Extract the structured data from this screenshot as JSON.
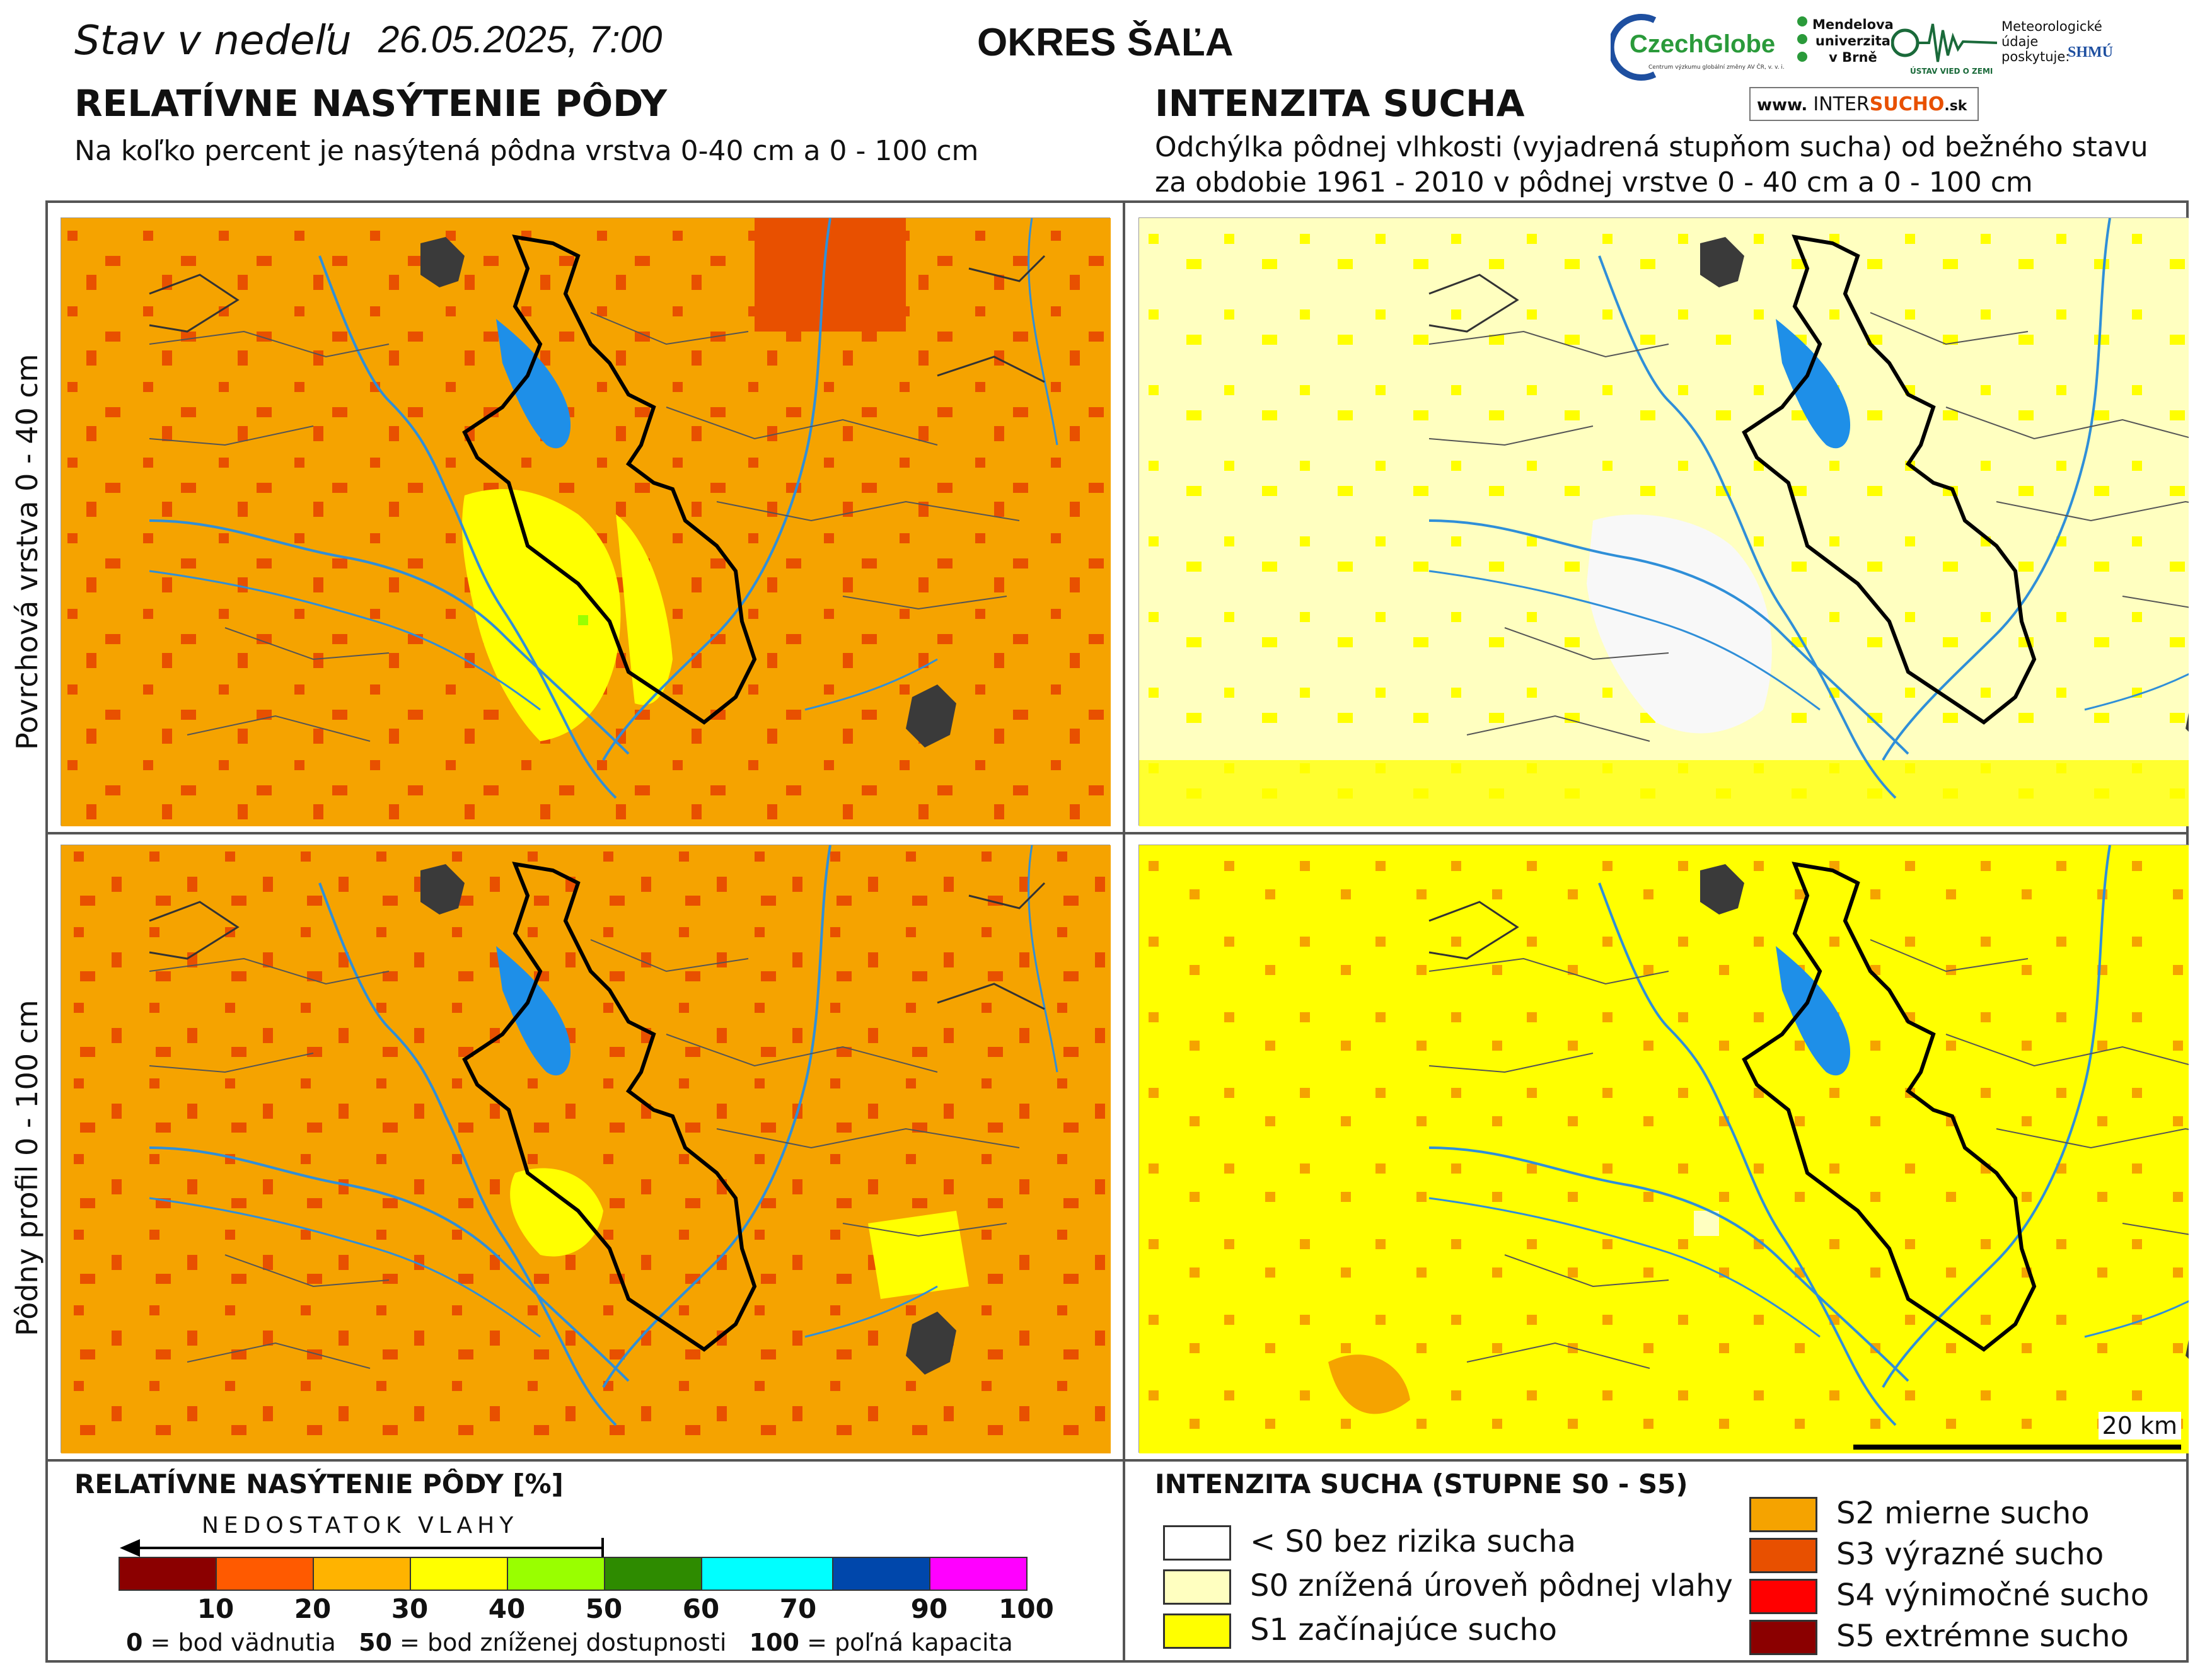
{
  "header": {
    "stav_prefix": "Stav v nedeľu",
    "date": "26.05.2025, 7:00",
    "district": "OKRES  ŠAĽA"
  },
  "left_panel": {
    "title": "RELATÍVNE NASÝTENIE PÔDY",
    "subtitle": "Na koľko percent je nasýtená pôdna vrstva 0-40 cm a 0 - 100 cm"
  },
  "right_panel": {
    "title": "INTENZITA SUCHA",
    "subtitle_line1": "Odchýlka pôdnej vlhkosti (vyjadrená stupňom sucha) od bežného stavu",
    "subtitle_line2": "za obdobie 1961 - 2010 v pôdnej vrstve 0 - 40 cm a 0 - 100 cm"
  },
  "rows": {
    "top_label": "Povrchová vrstva 0 - 40 cm",
    "bottom_label": "Pôdny profil 0 - 100 cm"
  },
  "logos": {
    "czechglobe": "CzechGlobe",
    "czechglobe_sub": "Centrum výzkumu globální změny AV ČR, v. v. i.",
    "mendel": [
      "Mendelova",
      "univerzita",
      "v Brně"
    ],
    "uvoz": "ÚSTAV VIED O ZEMI",
    "meteo": [
      "Meteorologické",
      "údaje",
      "poskytuje:"
    ],
    "shmu": "SHMÚ",
    "intersucho_www": "www.",
    "intersucho_a": "INTER",
    "intersucho_b": "SUCHO",
    "intersucho_c": ".sk"
  },
  "scalebar": {
    "label": "20 km"
  },
  "legend_saturation": {
    "title": "RELATÍVNE NASÝTENIE PÔDY [%]",
    "arrow_label": "NEDOSTATOK VLAHY",
    "segments": [
      {
        "color": "#8b0000"
      },
      {
        "color": "#ff5a00"
      },
      {
        "color": "#ffb300"
      },
      {
        "color": "#ffff00"
      },
      {
        "color": "#99ff00"
      },
      {
        "color": "#2e8b00"
      },
      {
        "color": "#00ffff"
      },
      {
        "color": "#0047ab"
      },
      {
        "color": "#ff00ff"
      }
    ],
    "ticks": [
      "10",
      "20",
      "30",
      "40",
      "50",
      "60",
      "70",
      "90",
      "100"
    ],
    "note_0": "0",
    "note_0_text": " = bod vädnutia",
    "note_50": "50",
    "note_50_text": " = bod zníženej dostupnosti",
    "note_100": "100",
    "note_100_text": " = poľná kapacita"
  },
  "legend_drought": {
    "title": "INTENZITA SUCHA (STUPNE S0 - S5)",
    "items": [
      {
        "label": "< S0 bez rizika sucha",
        "color": "#ffffff"
      },
      {
        "label": "S0 znížená úroveň pôdnej vlahy",
        "color": "#ffffc0"
      },
      {
        "label": "S1 začínajúce sucho",
        "color": "#ffff00"
      },
      {
        "label": "S2 mierne sucho",
        "color": "#f5a300"
      },
      {
        "label": "S3 výrazné sucho",
        "color": "#e85000"
      },
      {
        "label": "S4 výnimočné sucho",
        "color": "#ff0000"
      },
      {
        "label": "S5 extrémne sucho",
        "color": "#8b0000"
      }
    ]
  },
  "colors": {
    "frame": "#555555",
    "water": "#2f8fd8",
    "city": "#3a3a3a",
    "district_border": "#000000"
  }
}
